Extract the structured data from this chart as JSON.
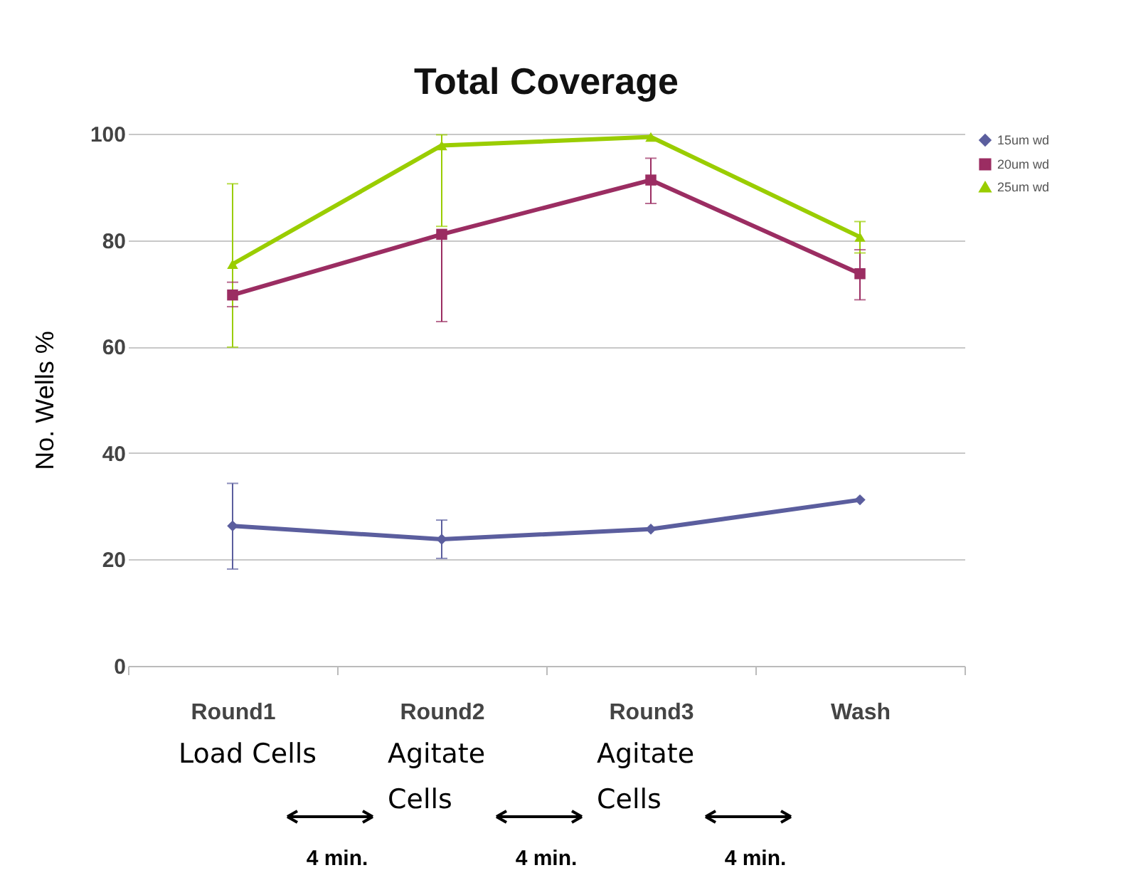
{
  "chart_data": {
    "type": "line",
    "title": "Total Coverage",
    "ylabel": "No. Wells %",
    "categories": [
      "Round1",
      "Round2",
      "Round3",
      "Wash"
    ],
    "ylim": [
      0,
      100
    ],
    "yticks": [
      0,
      20,
      40,
      60,
      80,
      100
    ],
    "grid": "y",
    "legend": "right",
    "series": [
      {
        "name": "15um wd",
        "color": "#5b5e9e",
        "marker": "diamond",
        "values": [
          26.3,
          23.8,
          25.7,
          31.2
        ],
        "errors": [
          [
            18.2,
            34.3
          ],
          [
            20.2,
            27.4
          ],
          null,
          null
        ]
      },
      {
        "name": "20um wd",
        "color": "#9b2d62",
        "marker": "square",
        "values": [
          69.7,
          81.1,
          91.3,
          73.7
        ],
        "errors": [
          [
            67.5,
            72.1
          ],
          [
            64.7,
            81.1
          ],
          [
            86.9,
            95.4
          ],
          [
            68.8,
            78.2
          ]
        ]
      },
      {
        "name": "25um wd",
        "color": "#9acd00",
        "marker": "triangle",
        "values": [
          75.5,
          97.8,
          99.4,
          80.6
        ],
        "errors": [
          [
            59.9,
            90.6
          ],
          [
            82.6,
            99.8
          ],
          null,
          [
            77.6,
            83.5
          ]
        ]
      }
    ],
    "annotations": [
      "Load Cells",
      "Agitate Cells",
      "Agitate Cells",
      "4 min.",
      "4 min.",
      "4 min."
    ]
  }
}
